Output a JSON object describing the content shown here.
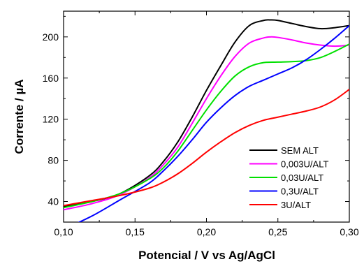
{
  "chart_data": {
    "type": "line",
    "xlabel": "Potencial / V  vs  Ag/AgCl",
    "ylabel": "Corrente  /  µA",
    "xlim": [
      0.1,
      0.3
    ],
    "ylim": [
      20,
      225
    ],
    "x_ticks": [
      "0,10",
      "0,15",
      "0,20",
      "0,25",
      "0,30"
    ],
    "y_ticks": [
      "40",
      "80",
      "120",
      "160",
      "200"
    ],
    "legend_position": "bottom-right",
    "series": [
      {
        "name": "SEM ALT",
        "color": "#000000",
        "x": [
          0.1,
          0.12,
          0.14,
          0.16,
          0.17,
          0.18,
          0.19,
          0.2,
          0.21,
          0.22,
          0.23,
          0.24,
          0.245,
          0.25,
          0.26,
          0.27,
          0.28,
          0.29,
          0.3
        ],
        "y": [
          35,
          40,
          48,
          65,
          79,
          98,
          122,
          148,
          172,
          195,
          211,
          216,
          216.5,
          216,
          213,
          210,
          208,
          209,
          211
        ]
      },
      {
        "name": "0,003U/ALT",
        "color": "#ff00ff",
        "x": [
          0.1,
          0.12,
          0.14,
          0.16,
          0.17,
          0.18,
          0.19,
          0.2,
          0.21,
          0.22,
          0.23,
          0.24,
          0.245,
          0.25,
          0.26,
          0.27,
          0.28,
          0.29,
          0.3
        ],
        "y": [
          32,
          38,
          47,
          63,
          76,
          93,
          116,
          140,
          162,
          181,
          194,
          199,
          200,
          199.5,
          197,
          194,
          192,
          191,
          192
        ]
      },
      {
        "name": "0,03U/ALT",
        "color": "#00e000",
        "x": [
          0.1,
          0.12,
          0.14,
          0.16,
          0.17,
          0.18,
          0.19,
          0.2,
          0.21,
          0.22,
          0.23,
          0.24,
          0.25,
          0.26,
          0.27,
          0.28,
          0.29,
          0.3
        ],
        "y": [
          34,
          40,
          48,
          62,
          73,
          89,
          109,
          129,
          147,
          162,
          171,
          175,
          175.5,
          176,
          177,
          180,
          186,
          193
        ]
      },
      {
        "name": "0,3U/ALT",
        "color": "#0000ff",
        "x": [
          0.1,
          0.12,
          0.14,
          0.16,
          0.17,
          0.18,
          0.19,
          0.2,
          0.21,
          0.22,
          0.23,
          0.24,
          0.25,
          0.26,
          0.27,
          0.28,
          0.29,
          0.3
        ],
        "y": [
          13,
          26,
          42,
          58,
          70,
          84,
          100,
          117,
          131,
          143,
          152,
          158,
          164,
          170,
          178,
          188,
          199,
          211
        ]
      },
      {
        "name": " 3U/ALT",
        "color": "#ff0000",
        "x": [
          0.1,
          0.12,
          0.14,
          0.16,
          0.17,
          0.18,
          0.19,
          0.2,
          0.21,
          0.22,
          0.23,
          0.24,
          0.25,
          0.26,
          0.27,
          0.28,
          0.29,
          0.3
        ],
        "y": [
          36,
          41,
          46,
          53,
          59,
          67,
          77,
          88,
          98,
          107,
          114,
          119,
          122,
          125,
          128,
          132,
          139,
          149
        ]
      }
    ]
  }
}
